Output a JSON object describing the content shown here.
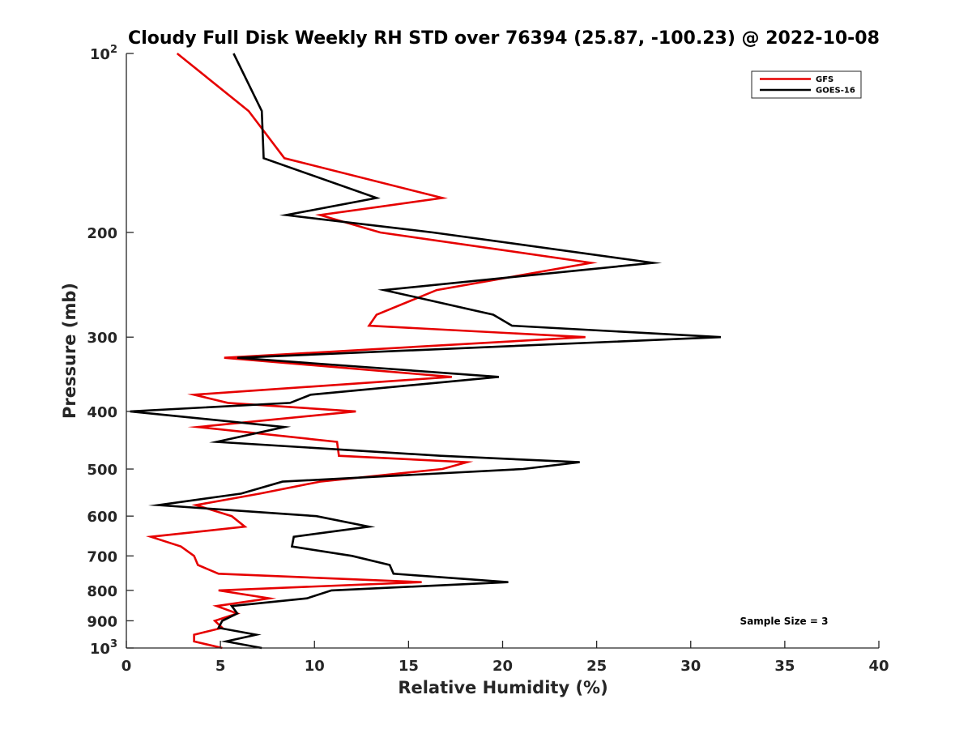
{
  "chart_data": {
    "type": "line",
    "title": "Cloudy Full Disk Weekly RH STD over 76394 (25.87, -100.23) @ 2022-10-08",
    "xlabel": "Relative Humidity (%)",
    "ylabel": "Pressure (mb)",
    "xlim": [
      0,
      40
    ],
    "ylim": [
      100,
      1000
    ],
    "yscale": "log",
    "y_reversed": true,
    "x_ticks": [
      "0",
      "5",
      "10",
      "15",
      "20",
      "25",
      "30",
      "35",
      "40"
    ],
    "y_ticks": [
      {
        "value": 100,
        "base": "10",
        "exp": "2"
      },
      {
        "value": 200,
        "label": "200"
      },
      {
        "value": 300,
        "label": "300"
      },
      {
        "value": 400,
        "label": "400"
      },
      {
        "value": 500,
        "label": "500"
      },
      {
        "value": 600,
        "label": "600"
      },
      {
        "value": 700,
        "label": "700"
      },
      {
        "value": 800,
        "label": "800"
      },
      {
        "value": 900,
        "label": "900"
      },
      {
        "value": 1000,
        "base": "10",
        "exp": "3"
      }
    ],
    "grid": false,
    "legend_position": "top-right",
    "annotation": "Sample Size = 3",
    "series": [
      {
        "name": "GFS",
        "color": "#e60000",
        "points": [
          [
            2.7,
            100
          ],
          [
            6.5,
            125
          ],
          [
            8.4,
            150
          ],
          [
            16.8,
            175
          ],
          [
            10.3,
            187
          ],
          [
            13.5,
            200
          ],
          [
            24.7,
            225
          ],
          [
            16.5,
            250
          ],
          [
            13.3,
            275
          ],
          [
            12.9,
            287
          ],
          [
            24.4,
            300
          ],
          [
            5.2,
            325
          ],
          [
            17.3,
            350
          ],
          [
            3.6,
            375
          ],
          [
            5.4,
            387
          ],
          [
            12.2,
            400
          ],
          [
            3.8,
            425
          ],
          [
            11.2,
            450
          ],
          [
            11.3,
            475
          ],
          [
            18.1,
            487
          ],
          [
            16.8,
            500
          ],
          [
            10.3,
            525
          ],
          [
            7.1,
            550
          ],
          [
            3.7,
            575
          ],
          [
            5.6,
            600
          ],
          [
            6.3,
            625
          ],
          [
            1.3,
            650
          ],
          [
            2.9,
            675
          ],
          [
            3.6,
            700
          ],
          [
            3.8,
            725
          ],
          [
            4.9,
            750
          ],
          [
            15.7,
            775
          ],
          [
            4.9,
            800
          ],
          [
            7.6,
            825
          ],
          [
            4.8,
            850
          ],
          [
            5.9,
            875
          ],
          [
            4.7,
            900
          ],
          [
            5.1,
            925
          ],
          [
            3.6,
            950
          ],
          [
            3.6,
            975
          ],
          [
            5.1,
            1000
          ]
        ]
      },
      {
        "name": "GOES-16",
        "color": "#000000",
        "points": [
          [
            5.7,
            100
          ],
          [
            7.2,
            125
          ],
          [
            7.3,
            150
          ],
          [
            13.3,
            175
          ],
          [
            8.5,
            187
          ],
          [
            16.3,
            200
          ],
          [
            28.0,
            225
          ],
          [
            13.7,
            250
          ],
          [
            19.5,
            275
          ],
          [
            20.5,
            287
          ],
          [
            31.6,
            300
          ],
          [
            5.9,
            325
          ],
          [
            19.8,
            350
          ],
          [
            9.8,
            375
          ],
          [
            8.7,
            387
          ],
          [
            0.2,
            400
          ],
          [
            8.4,
            425
          ],
          [
            4.8,
            450
          ],
          [
            16.7,
            475
          ],
          [
            24.1,
            487
          ],
          [
            21.1,
            500
          ],
          [
            8.3,
            525
          ],
          [
            6.1,
            550
          ],
          [
            1.7,
            575
          ],
          [
            10.1,
            600
          ],
          [
            12.9,
            625
          ],
          [
            8.9,
            650
          ],
          [
            8.8,
            675
          ],
          [
            12.0,
            700
          ],
          [
            14.0,
            725
          ],
          [
            14.2,
            750
          ],
          [
            20.3,
            775
          ],
          [
            10.9,
            800
          ],
          [
            9.6,
            825
          ],
          [
            5.6,
            850
          ],
          [
            5.9,
            875
          ],
          [
            5.1,
            900
          ],
          [
            4.9,
            925
          ],
          [
            6.9,
            950
          ],
          [
            5.3,
            975
          ],
          [
            7.2,
            1000
          ]
        ]
      }
    ]
  }
}
